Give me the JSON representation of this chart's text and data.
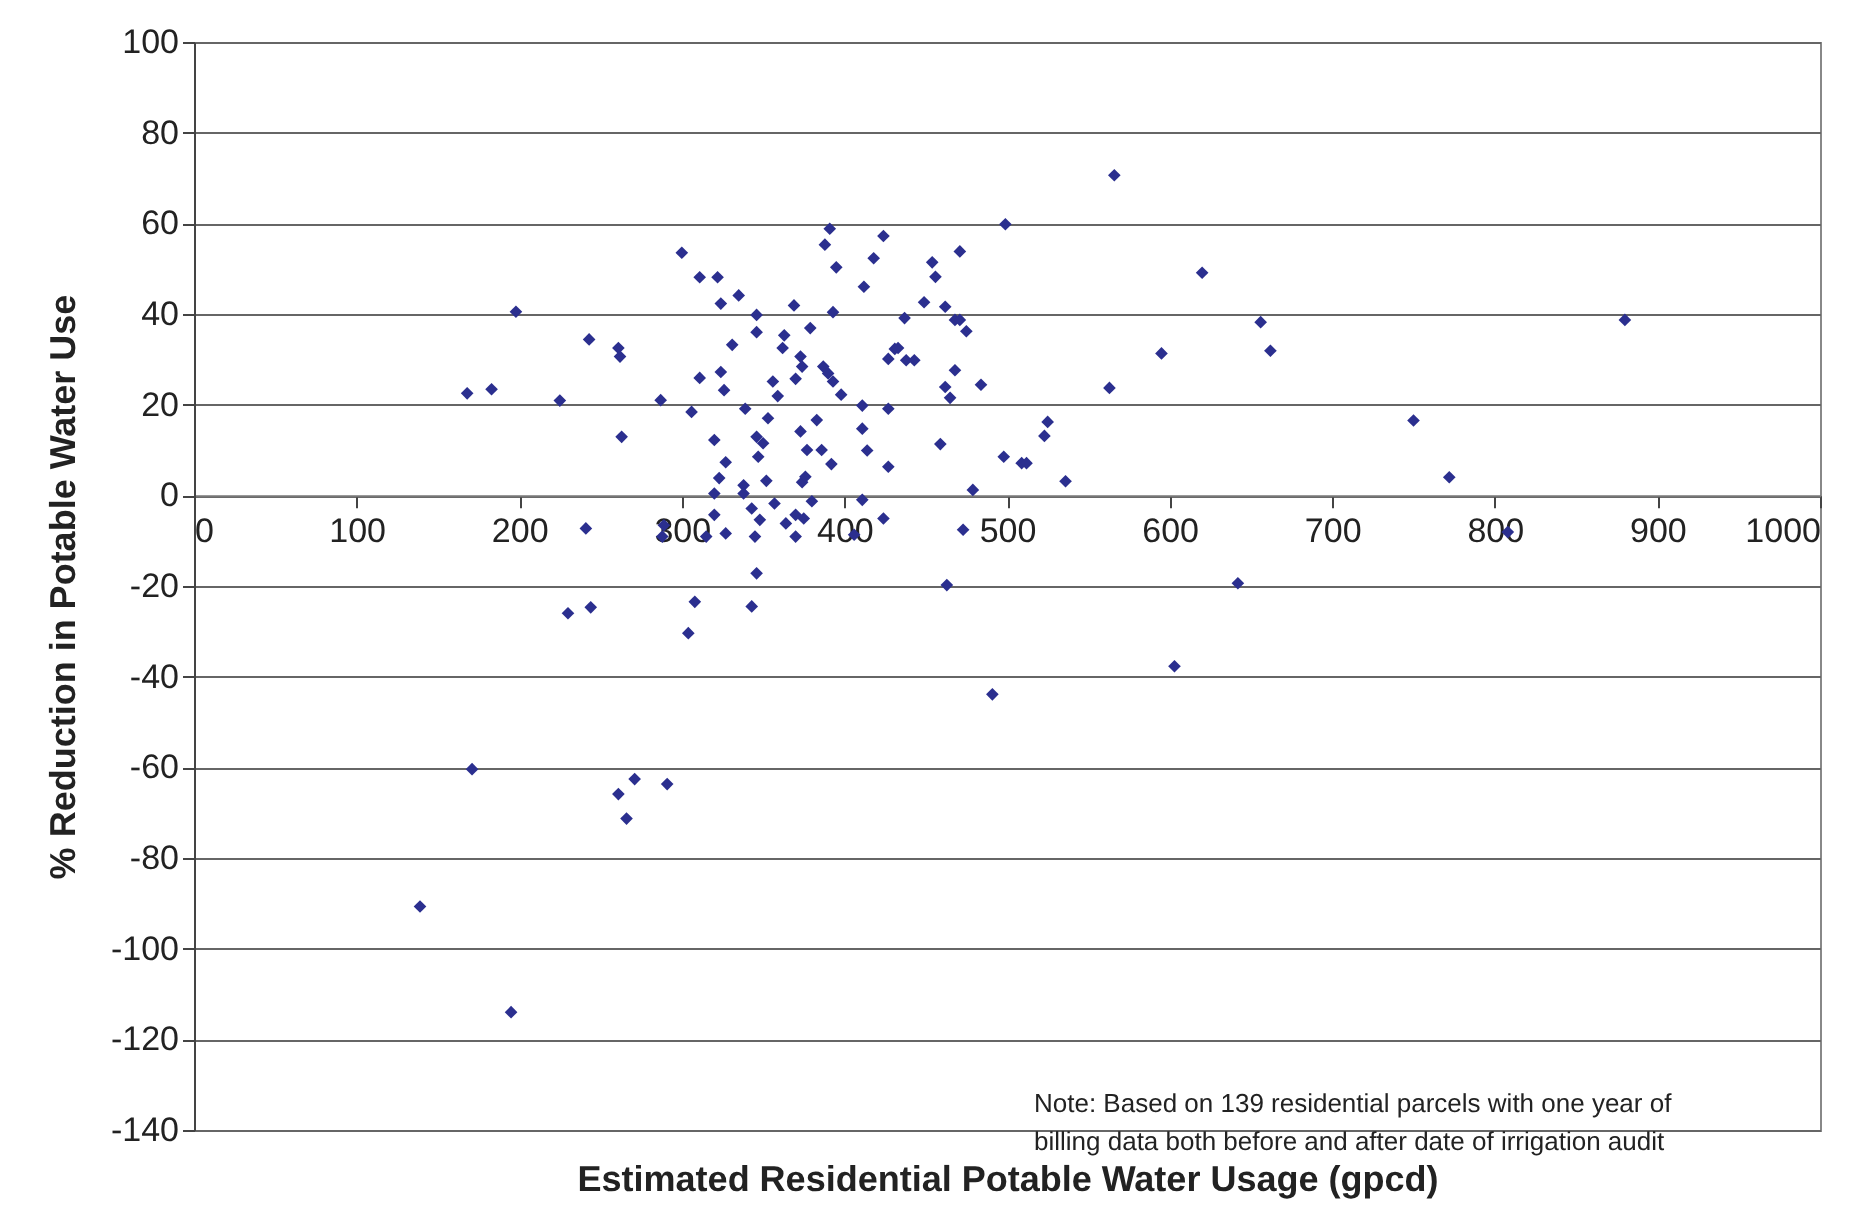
{
  "chart_data": {
    "type": "scatter",
    "xlabel": "Estimated Residential Potable Water Usage (gpcd)",
    "ylabel": "% Reduction in Potable Water Use",
    "xlim": [
      0,
      1000
    ],
    "xticks": [
      0,
      100,
      200,
      300,
      400,
      500,
      600,
      700,
      800,
      900,
      1000
    ],
    "ylim": [
      -140,
      100
    ],
    "yticks": [
      -140,
      -120,
      -100,
      -80,
      -60,
      -40,
      -20,
      0,
      20,
      40,
      60,
      80,
      100
    ],
    "grid": "y",
    "marker": "diamond",
    "annotations": [
      "Note:  Based on 139 residential parcels with one year of billing data both before and after date of irrigation audit"
    ],
    "series": [
      {
        "color": "#2b2f8f",
        "x": [
          168,
          183,
          198,
          225,
          243,
          241,
          230,
          244,
          261,
          262,
          263,
          300,
          311,
          322,
          324,
          335,
          346,
          346,
          331,
          311,
          324,
          326,
          287,
          306,
          320,
          327,
          323,
          320,
          320,
          327,
          315,
          289,
          288,
          308,
          304,
          346,
          343,
          345,
          338,
          338,
          339,
          353,
          346,
          350,
          347,
          352,
          357,
          343,
          348,
          364,
          370,
          375,
          370,
          380,
          374,
          376,
          373,
          377,
          386,
          392,
          383,
          356,
          359,
          370,
          373,
          374,
          362,
          363,
          379,
          369,
          393,
          387,
          390,
          393,
          398,
          391,
          388,
          395,
          412,
          418,
          424,
          411,
          411,
          414,
          427,
          427,
          411,
          406,
          424,
          427,
          431,
          437,
          454,
          456,
          471,
          499,
          566,
          620,
          449,
          438,
          462,
          468,
          471,
          475,
          433,
          443,
          468,
          462,
          465,
          484,
          563,
          595,
          656,
          662,
          525,
          523,
          459,
          498,
          509,
          512,
          536,
          479,
          473,
          463,
          642,
          603,
          491,
          750,
          772,
          808,
          880,
          171,
          261,
          271,
          291,
          266,
          139,
          195
        ],
        "values": [
          22.5,
          23.4,
          40.5,
          20.9,
          34.4,
          -7.3,
          -26,
          -24.7,
          32.5,
          30.6,
          12.9,
          53.5,
          48.1,
          48.1,
          42.3,
          44.1,
          39.8,
          36,
          33.2,
          25.9,
          27.2,
          23.2,
          21,
          18.4,
          12.2,
          7.3,
          3.8,
          0.4,
          -4.3,
          -8.4,
          -9.1,
          -6.6,
          -9.1,
          -23.5,
          -30.4,
          -17.2,
          -24.5,
          -9.1,
          2.2,
          0.4,
          19.1,
          17,
          12.9,
          11.5,
          8.5,
          3.2,
          -1.8,
          -2.9,
          -5.4,
          -6.2,
          -4.3,
          -5.1,
          -9.1,
          -1.3,
          2.9,
          4.1,
          14.1,
          10,
          10,
          6.9,
          16.6,
          25.1,
          21.9,
          25.7,
          30.6,
          28.4,
          32.5,
          35.3,
          36.9,
          41.9,
          40.4,
          28.4,
          26.9,
          25.1,
          22.2,
          58.8,
          55.3,
          50.3,
          46,
          52.3,
          57.2,
          19.8,
          14.7,
          9.9,
          19.1,
          6.3,
          -1,
          -8.7,
          -5.1,
          30.1,
          32.3,
          39.1,
          51.4,
          48.2,
          53.8,
          59.8,
          70.6,
          49.1,
          42.6,
          29.8,
          41.6,
          38.7,
          38.7,
          36.2,
          32.5,
          29.8,
          27.6,
          23.9,
          21.5,
          24.4,
          23.7,
          31.3,
          38.2,
          31.9,
          16.2,
          13.1,
          11.3,
          8.5,
          7.1,
          7.1,
          3.1,
          1.2,
          -7.6,
          -19.8,
          -19.4,
          -37.7,
          -43.9,
          16.5,
          4,
          -8.1,
          38.7,
          -60.4,
          -65.9,
          -62.6,
          -63.7,
          -71.3,
          -90.7,
          -114
        ]
      }
    ]
  }
}
